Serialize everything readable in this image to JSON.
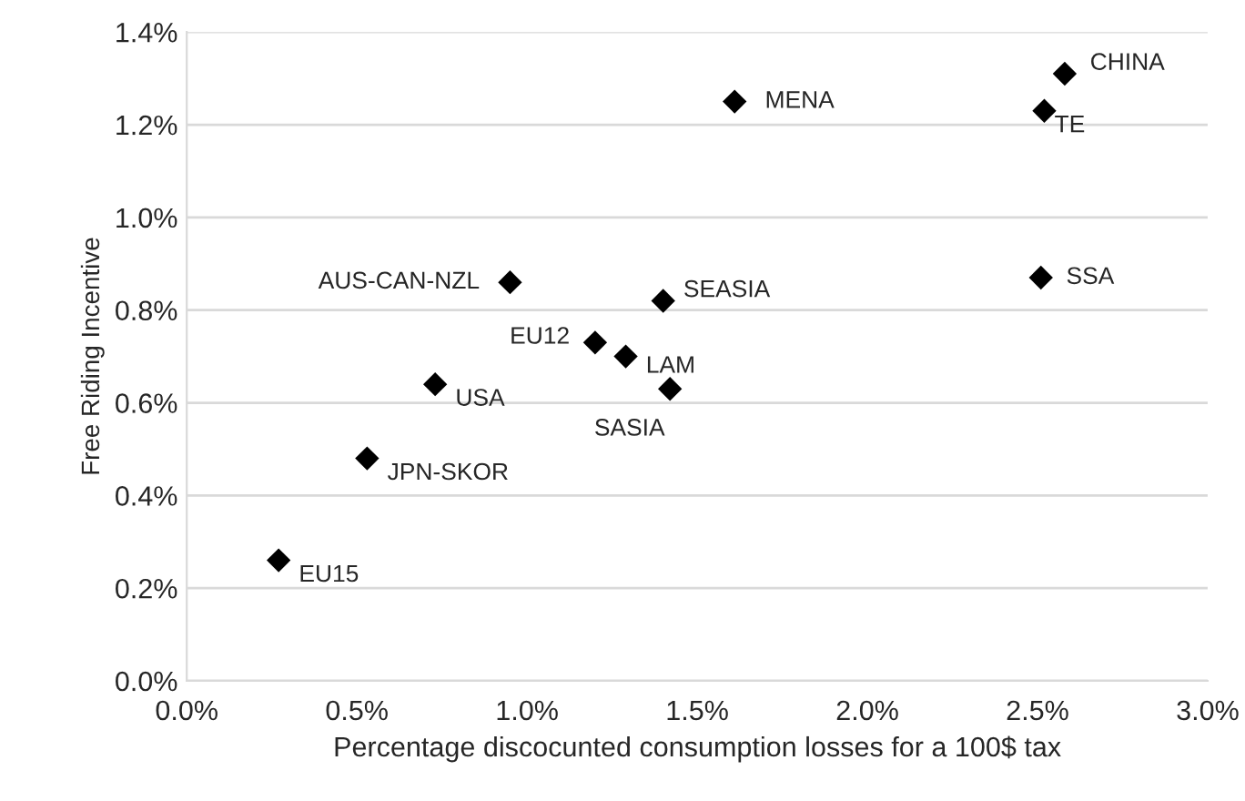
{
  "chart_data": {
    "type": "scatter",
    "xlabel": "Percentage discocunted consumption losses for a 100$ tax",
    "ylabel": "Free Riding Incentive",
    "x": [
      0.27,
      0.53,
      0.73,
      0.95,
      1.2,
      1.29,
      1.4,
      1.42,
      1.61,
      2.58,
      2.52,
      2.51
    ],
    "series": [
      {
        "color": "#000000",
        "values": [
          0.26,
          0.48,
          0.64,
          0.86,
          0.73,
          0.7,
          0.82,
          0.63,
          1.25,
          1.31,
          1.23,
          0.87
        ]
      }
    ],
    "annotations": [
      {
        "text": "EU15",
        "x": 0.27,
        "y": 0.26
      },
      {
        "text": "JPN-SKOR",
        "x": 0.53,
        "y": 0.48
      },
      {
        "text": "USA",
        "x": 0.73,
        "y": 0.64
      },
      {
        "text": "AUS-CAN-NZL",
        "x": 0.95,
        "y": 0.86
      },
      {
        "text": "EU12",
        "x": 1.2,
        "y": 0.73
      },
      {
        "text": "LAM",
        "x": 1.29,
        "y": 0.7
      },
      {
        "text": "SEASIA",
        "x": 1.4,
        "y": 0.82
      },
      {
        "text": "SASIA",
        "x": 1.42,
        "y": 0.63
      },
      {
        "text": "MENA",
        "x": 1.61,
        "y": 1.25
      },
      {
        "text": "CHINA",
        "x": 2.58,
        "y": 1.31
      },
      {
        "text": "TE",
        "x": 2.52,
        "y": 1.23
      },
      {
        "text": "SSA",
        "x": 2.51,
        "y": 0.87
      }
    ],
    "xlim": [
      0,
      3
    ],
    "ylim": [
      0,
      1.4
    ],
    "xticks": [
      {
        "value": 0,
        "label": "0.0%"
      },
      {
        "value": 0.5,
        "label": "0.5%"
      },
      {
        "value": 1,
        "label": "1.0%"
      },
      {
        "value": 1.5,
        "label": "1.5%"
      },
      {
        "value": 2,
        "label": "2.0%"
      },
      {
        "value": 2.5,
        "label": "2.5%"
      },
      {
        "value": 3,
        "label": "3.0%"
      }
    ],
    "yticks": [
      {
        "value": 0,
        "label": "0.0%"
      },
      {
        "value": 0.2,
        "label": "0.2%"
      },
      {
        "value": 0.4,
        "label": "0.4%"
      },
      {
        "value": 0.6,
        "label": "0.6%"
      },
      {
        "value": 0.8,
        "label": "0.8%"
      },
      {
        "value": 1,
        "label": "1.0%"
      },
      {
        "value": 1.2,
        "label": "1.2%"
      },
      {
        "value": 1.4,
        "label": "1.4%"
      }
    ],
    "grid": "y",
    "marker": "diamond"
  }
}
